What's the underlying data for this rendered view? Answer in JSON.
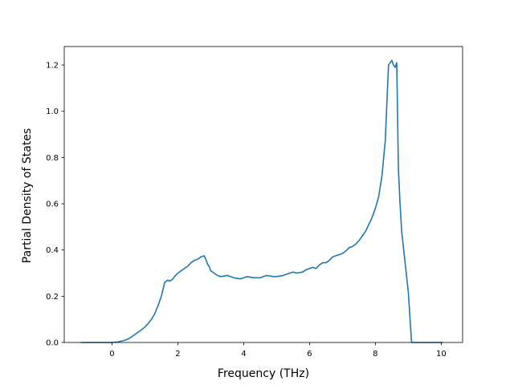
{
  "chart_data": {
    "type": "line",
    "title": "",
    "xlabel": "Frequency (THz)",
    "ylabel": "Partial Density of States",
    "xlim": [
      -1.45,
      10.65
    ],
    "ylim": [
      0.0,
      1.28
    ],
    "xticks": [
      0,
      2,
      4,
      6,
      8,
      10
    ],
    "yticks": [
      0.0,
      0.2,
      0.4,
      0.6,
      0.8,
      1.0,
      1.2
    ],
    "xtick_labels": [
      "0",
      "2",
      "4",
      "6",
      "8",
      "10"
    ],
    "ytick_labels": [
      "0.0",
      "0.2",
      "0.4",
      "0.6",
      "0.8",
      "1.0",
      "1.2"
    ],
    "grid": false,
    "legend": "none",
    "series": [
      {
        "color": "#1f77b4",
        "x": [
          -0.95,
          0.0,
          0.2,
          0.4,
          0.5,
          0.6,
          0.7,
          0.8,
          0.9,
          1.0,
          1.1,
          1.2,
          1.3,
          1.4,
          1.5,
          1.6,
          1.7,
          1.75,
          1.8,
          1.85,
          1.9,
          2.0,
          2.1,
          2.2,
          2.3,
          2.4,
          2.5,
          2.6,
          2.7,
          2.8,
          2.85,
          2.9,
          2.95,
          3.0,
          3.1,
          3.2,
          3.3,
          3.5,
          3.7,
          3.9,
          4.1,
          4.3,
          4.5,
          4.7,
          4.9,
          5.0,
          5.2,
          5.4,
          5.5,
          5.6,
          5.8,
          5.9,
          6.0,
          6.1,
          6.2,
          6.3,
          6.4,
          6.5,
          6.6,
          6.7,
          6.8,
          6.9,
          7.0,
          7.1,
          7.2,
          7.3,
          7.4,
          7.5,
          7.6,
          7.7,
          7.8,
          7.9,
          8.0,
          8.1,
          8.2,
          8.3,
          8.4,
          8.5,
          8.55,
          8.6,
          8.65,
          8.7,
          8.75,
          8.8,
          8.9,
          9.0,
          9.1,
          9.2,
          9.3,
          10.05
        ],
        "y": [
          0.0,
          0.0,
          0.003,
          0.01,
          0.016,
          0.025,
          0.035,
          0.045,
          0.055,
          0.067,
          0.082,
          0.1,
          0.125,
          0.16,
          0.2,
          0.26,
          0.27,
          0.265,
          0.27,
          0.275,
          0.285,
          0.3,
          0.31,
          0.32,
          0.33,
          0.345,
          0.355,
          0.36,
          0.37,
          0.375,
          0.36,
          0.34,
          0.33,
          0.31,
          0.3,
          0.29,
          0.285,
          0.29,
          0.28,
          0.275,
          0.285,
          0.28,
          0.28,
          0.29,
          0.285,
          0.285,
          0.29,
          0.3,
          0.305,
          0.3,
          0.305,
          0.315,
          0.32,
          0.325,
          0.32,
          0.335,
          0.345,
          0.345,
          0.355,
          0.37,
          0.375,
          0.38,
          0.385,
          0.395,
          0.41,
          0.415,
          0.425,
          0.44,
          0.46,
          0.48,
          0.51,
          0.54,
          0.58,
          0.63,
          0.72,
          0.87,
          1.2,
          1.22,
          1.2,
          1.19,
          1.21,
          0.75,
          0.6,
          0.48,
          0.35,
          0.22,
          0.0,
          0.0,
          0.0,
          0.0
        ]
      }
    ]
  }
}
